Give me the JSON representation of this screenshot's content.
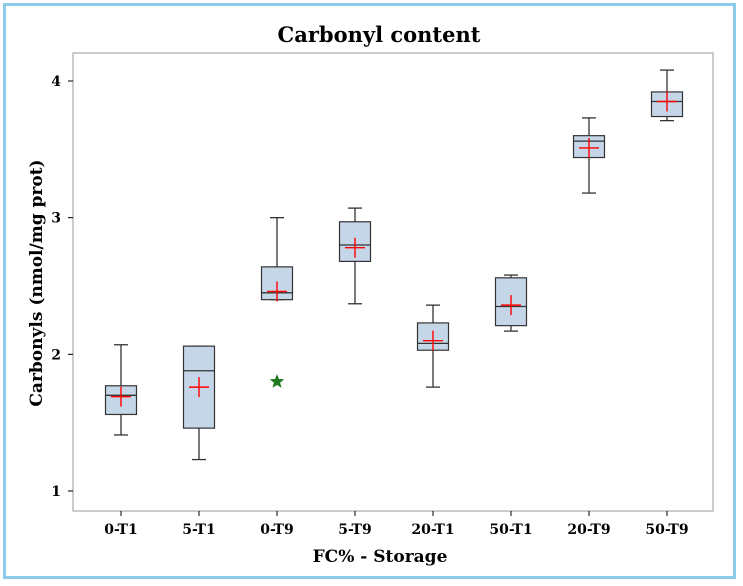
{
  "chart_data": {
    "type": "boxplot",
    "title": "Carbonyl content",
    "xlabel": "FC% - Storage",
    "ylabel": "Carbonyls (nmol/mg prot)",
    "ylim": [
      0.85,
      4.2
    ],
    "yticks": [
      1,
      2,
      3,
      4
    ],
    "categories": [
      "0-T1",
      "5-T1",
      "0-T9",
      "5-T9",
      "20-T1",
      "50-T1",
      "20-T9",
      "50-T9"
    ],
    "boxes": [
      {
        "category": "0-T1",
        "whisker_low": 1.41,
        "q1": 1.56,
        "median": 1.7,
        "q3": 1.77,
        "whisker_high": 2.07,
        "mean": 1.69,
        "outliers": []
      },
      {
        "category": "5-T1",
        "whisker_low": 1.23,
        "q1": 1.46,
        "median": 1.88,
        "q3": 2.06,
        "whisker_high": 2.06,
        "mean": 1.76,
        "outliers": []
      },
      {
        "category": "0-T9",
        "whisker_low": 2.4,
        "q1": 2.4,
        "median": 2.45,
        "q3": 2.64,
        "whisker_high": 3.0,
        "mean": 2.46,
        "outliers": [
          1.8
        ]
      },
      {
        "category": "5-T9",
        "whisker_low": 2.37,
        "q1": 2.68,
        "median": 2.8,
        "q3": 2.97,
        "whisker_high": 3.07,
        "mean": 2.78,
        "outliers": []
      },
      {
        "category": "20-T1",
        "whisker_low": 1.76,
        "q1": 2.03,
        "median": 2.08,
        "q3": 2.23,
        "whisker_high": 2.36,
        "mean": 2.1,
        "outliers": []
      },
      {
        "category": "50-T1",
        "whisker_low": 2.17,
        "q1": 2.21,
        "median": 2.35,
        "q3": 2.56,
        "whisker_high": 2.58,
        "mean": 2.36,
        "outliers": []
      },
      {
        "category": "20-T9",
        "whisker_low": 3.18,
        "q1": 3.44,
        "median": 3.56,
        "q3": 3.6,
        "whisker_high": 3.73,
        "mean": 3.51,
        "outliers": []
      },
      {
        "category": "50-T9",
        "whisker_low": 3.71,
        "q1": 3.74,
        "median": 3.85,
        "q3": 3.92,
        "whisker_high": 4.08,
        "mean": 3.85,
        "outliers": []
      }
    ],
    "grid": false,
    "legend": "none"
  },
  "colors": {
    "frame": "#8ecbea",
    "box_fill": "#c5d6e8",
    "box_stroke": "#333333",
    "mean_marker": "#ff0000",
    "outlier": "#1e7a1e",
    "plot_border": "#9a9a9a"
  }
}
